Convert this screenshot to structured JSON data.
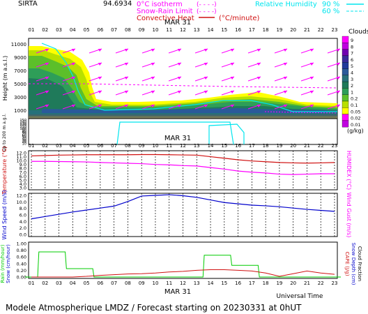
{
  "header": {
    "station": "SIRTA",
    "coords": "94.6934",
    "isotherm_label": "0°C isotherm",
    "snow_rain_label": "Snow-Rain Limit",
    "convective_label": "Convective Heat",
    "convective_unit": "(°C/minute)",
    "rh_label": "Relative Humidity",
    "rh_90": "90 %",
    "rh_60": "60 %"
  },
  "footer": {
    "title": "Modele Atmospherique LMDZ / Forecast starting on 20230331 at 0hUT",
    "universal_time": "Universal Time",
    "date": "MAR 31"
  },
  "hours": [
    "01",
    "02",
    "03",
    "04",
    "05",
    "06",
    "07",
    "08",
    "09",
    "10",
    "11",
    "12",
    "13",
    "14",
    "15",
    "16",
    "17",
    "18",
    "19",
    "20",
    "21",
    "22",
    "23"
  ],
  "colors": {
    "purple": "#ff00ff",
    "cyan": "#00e5ee",
    "red": "#d01010",
    "blue": "#0000cc",
    "green": "#00cc00",
    "cloud_scale": [
      "#ffff00",
      "#b8e000",
      "#5cbf2a",
      "#2e9e58",
      "#1f7a5a",
      "#26707a",
      "#2a5a9a",
      "#203a9a",
      "#3a2a9a",
      "#7000b0",
      "#c000e0",
      "#ff00ff"
    ]
  },
  "chart_data": [
    {
      "type": "heatmap",
      "name": "cloud-cross-section",
      "title": "MAR 31",
      "ylabel": "Height (m a.s.l.)",
      "ylabel2": "Up to 200 m a.g.l.",
      "y_ticks_upper": [
        "11000",
        "9000",
        "7000",
        "5000",
        "3000",
        "1000"
      ],
      "y_ticks_lower": [
        "150",
        "140",
        "130",
        "120",
        "110",
        "100",
        "90",
        "80",
        "70",
        "60",
        "50",
        "40",
        "30",
        "20",
        "10"
      ],
      "legend_title": "Clouds",
      "legend_unit": "(g/kg)",
      "legend_levels": [
        "0.01",
        "0.02",
        "0.05",
        "0.1",
        "0.2",
        "1",
        "2",
        "3",
        "4",
        "5",
        "6",
        "7",
        "8",
        "9"
      ]
    },
    {
      "type": "line",
      "name": "temperature-humidex",
      "xlabel": "",
      "ylabel": "Temperature (°C)",
      "ylabel2": "HUMIDEX (°C)",
      "y_ticks": [
        "12.0",
        "11.0",
        "10.0",
        "9.0",
        "8.0",
        "7.0",
        "6.0",
        "5.0",
        "4.0",
        "3.0"
      ],
      "ylim": [
        3.0,
        12.0
      ],
      "x": [
        1,
        2,
        3,
        4,
        5,
        6,
        7,
        8,
        9,
        10,
        11,
        12,
        13,
        14,
        15,
        16,
        17,
        18,
        19,
        20,
        21,
        22,
        23
      ],
      "series": [
        {
          "values": [
            11.2,
            11.3,
            11.4,
            11.45,
            11.5,
            11.5,
            11.5,
            11.5,
            11.55,
            11.55,
            11.5,
            11.45,
            11.4,
            11.0,
            10.6,
            10.2,
            9.9,
            9.7,
            9.5,
            9.4,
            9.35,
            9.4,
            9.5
          ],
          "color": "#d01010"
        },
        {
          "values": [
            9.8,
            9.8,
            9.75,
            9.7,
            9.65,
            9.5,
            9.4,
            9.3,
            9.2,
            9.0,
            8.9,
            8.7,
            8.6,
            8.2,
            7.8,
            7.3,
            7.0,
            6.8,
            6.5,
            6.4,
            6.5,
            6.6,
            6.6
          ],
          "color": "#ff00ff"
        }
      ]
    },
    {
      "type": "line",
      "name": "wind",
      "ylabel": "Wind Speed (m/s)",
      "ylabel2": "Wind Gust (m/s)",
      "y_ticks": [
        "12.0",
        "10.0",
        "8.0",
        "6.0",
        "4.0",
        "2.0",
        "0.0"
      ],
      "ylim": [
        0,
        12
      ],
      "x": [
        1,
        2,
        3,
        4,
        5,
        6,
        7,
        8,
        9,
        10,
        11,
        12,
        13,
        14,
        15,
        16,
        17,
        18,
        19,
        20,
        21,
        22,
        23
      ],
      "series": [
        {
          "values": [
            4.8,
            5.5,
            6.2,
            6.9,
            7.5,
            8.1,
            8.7,
            10.1,
            11.8,
            12.0,
            12.2,
            11.9,
            11.4,
            10.6,
            9.8,
            9.4,
            9.0,
            8.8,
            8.5,
            8.1,
            7.7,
            7.4,
            7.1
          ],
          "color": "#0000cc"
        }
      ]
    },
    {
      "type": "line",
      "name": "precipitation",
      "ylabel": "Rain (mm/hour)",
      "ylabel2": "Snow (cm/hour)",
      "ylabel_right": "CAPE (J/g)",
      "ylabel_right2": "Snow Depth (cm)",
      "ylabel_right3": "Cloud Fraction",
      "y_ticks": [
        "1.00",
        "0.80",
        "0.60",
        "0.40",
        "0.20",
        "0.00"
      ],
      "ylim": [
        0,
        1.0
      ],
      "x": [
        1,
        2,
        3,
        4,
        5,
        6,
        7,
        8,
        9,
        10,
        11,
        12,
        13,
        14,
        15,
        16,
        17,
        18,
        19,
        20,
        21,
        22,
        23
      ],
      "series": [
        {
          "values": [
            0.0,
            0.75,
            0.75,
            0.25,
            0.25,
            0.0,
            0.0,
            0.0,
            0.0,
            0.0,
            0.0,
            0.0,
            0.0,
            0.65,
            0.65,
            0.35,
            0.35,
            0.0,
            0.0,
            0.0,
            0.0,
            0.0,
            0.0
          ],
          "color": "#00cc00"
        },
        {
          "values": [
            0.0,
            0.0,
            0.0,
            0.0,
            0.02,
            0.05,
            0.07,
            0.09,
            0.1,
            0.12,
            0.15,
            0.17,
            0.2,
            0.22,
            0.22,
            0.2,
            0.18,
            0.12,
            0.02,
            0.1,
            0.18,
            0.12,
            0.08
          ],
          "color": "#d01010"
        }
      ]
    }
  ]
}
